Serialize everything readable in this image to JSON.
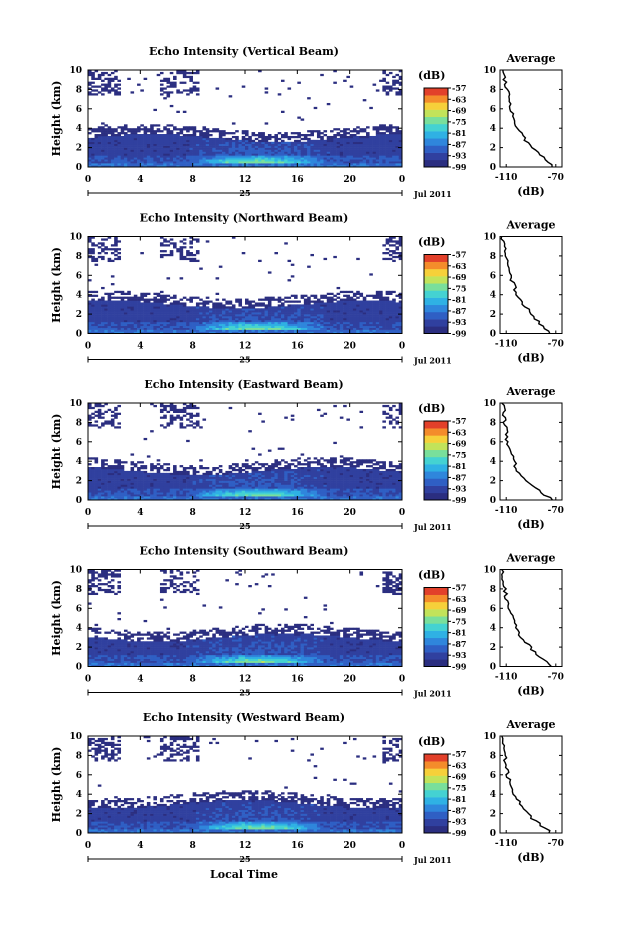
{
  "colors": {
    "scale": [
      "#2b2e80",
      "#30409f",
      "#2f5fc4",
      "#2f86dc",
      "#2fb1e4",
      "#44d2d2",
      "#79df9b",
      "#c2e35a",
      "#f6d03a",
      "#f48c2b",
      "#e2402a"
    ]
  },
  "common": {
    "local_time_label": "Local Time",
    "date_label": "Jul 2011",
    "day_label": "25",
    "unit_label": "(dB)",
    "average_title": "Average",
    "height_label": "Height (km)"
  },
  "chart_data": [
    {
      "type": "heatmap",
      "title": "Echo Intensity (Vertical Beam)",
      "xlabel": "",
      "ylabel": "Height (km)",
      "x_ticks": [
        "0",
        "4",
        "8",
        "12",
        "16",
        "20",
        "0"
      ],
      "xlim": [
        0,
        24
      ],
      "y_ticks": [
        "0",
        "2",
        "4",
        "6",
        "8",
        "10"
      ],
      "ylim": [
        0,
        10
      ],
      "colorbar": {
        "label": "(dB)",
        "ticks": [
          "-57",
          "-63",
          "-69",
          "-75",
          "-81",
          "-87",
          "-93",
          "-99"
        ],
        "range": [
          -99,
          -57
        ]
      },
      "profile": {
        "title": "Average",
        "xlabel": "(dB)",
        "x_ticks": [
          "-110",
          "-70"
        ],
        "xlim": [
          -115,
          -65
        ],
        "y_ticks": [
          "0",
          "2",
          "4",
          "6",
          "8",
          "10"
        ],
        "ylim": [
          0,
          10
        ],
        "x": [
          -112,
          -111,
          -109,
          -107,
          -106,
          -104,
          -101,
          -96,
          -91,
          -86,
          -80,
          -77,
          -73
        ],
        "y": [
          10,
          9,
          8,
          7,
          6,
          5,
          4,
          3,
          2.3,
          1.6,
          1.0,
          0.6,
          0.2
        ]
      }
    },
    {
      "type": "heatmap",
      "title": "Echo Intensity (Northward Beam)",
      "xlabel": "",
      "ylabel": "Height (km)",
      "x_ticks": [
        "0",
        "4",
        "8",
        "12",
        "16",
        "20",
        "0"
      ],
      "xlim": [
        0,
        24
      ],
      "y_ticks": [
        "0",
        "2",
        "4",
        "6",
        "8",
        "10"
      ],
      "ylim": [
        0,
        10
      ],
      "colorbar": {
        "label": "(dB)",
        "ticks": [
          "-57",
          "-63",
          "-69",
          "-75",
          "-81",
          "-87",
          "-93",
          "-99"
        ],
        "range": [
          -99,
          -57
        ]
      },
      "profile": {
        "title": "Average",
        "xlabel": "(dB)",
        "x_ticks": [
          "-110",
          "-70"
        ],
        "xlim": [
          -115,
          -65
        ],
        "y_ticks": [
          "0",
          "2",
          "4",
          "6",
          "8",
          "10"
        ],
        "ylim": [
          0,
          10
        ],
        "x": [
          -113,
          -112,
          -110,
          -109,
          -107,
          -104,
          -101,
          -96,
          -91,
          -87,
          -83,
          -80,
          -74
        ],
        "y": [
          10,
          9,
          8,
          7,
          6,
          5,
          4,
          3,
          2.3,
          1.6,
          1.0,
          0.6,
          0.2
        ]
      }
    },
    {
      "type": "heatmap",
      "title": "Echo Intensity (Eastward Beam)",
      "xlabel": "",
      "ylabel": "Height (km)",
      "x_ticks": [
        "0",
        "4",
        "8",
        "12",
        "16",
        "20",
        "0"
      ],
      "xlim": [
        0,
        24
      ],
      "y_ticks": [
        "0",
        "2",
        "4",
        "6",
        "8",
        "10"
      ],
      "ylim": [
        0,
        10
      ],
      "colorbar": {
        "label": "(dB)",
        "ticks": [
          "-57",
          "-63",
          "-69",
          "-75",
          "-81",
          "-87",
          "-93",
          "-99"
        ],
        "range": [
          -99,
          -57
        ]
      },
      "profile": {
        "title": "Average",
        "xlabel": "(dB)",
        "x_ticks": [
          "-110",
          "-70"
        ],
        "xlim": [
          -115,
          -65
        ],
        "y_ticks": [
          "0",
          "2",
          "4",
          "6",
          "8",
          "10"
        ],
        "ylim": [
          0,
          10
        ],
        "x": [
          -113,
          -112,
          -111,
          -110,
          -109,
          -106,
          -104,
          -101,
          -95,
          -90,
          -84,
          -80,
          -74
        ],
        "y": [
          10,
          9,
          8,
          7,
          6,
          5,
          4,
          3,
          2.3,
          1.6,
          1.0,
          0.6,
          0.2
        ]
      }
    },
    {
      "type": "heatmap",
      "title": "Echo Intensity (Southward Beam)",
      "xlabel": "",
      "ylabel": "Height (km)",
      "x_ticks": [
        "0",
        "4",
        "8",
        "12",
        "16",
        "20",
        "0"
      ],
      "xlim": [
        0,
        24
      ],
      "y_ticks": [
        "0",
        "2",
        "4",
        "6",
        "8",
        "10"
      ],
      "ylim": [
        0,
        10
      ],
      "colorbar": {
        "label": "(dB)",
        "ticks": [
          "-57",
          "-63",
          "-69",
          "-75",
          "-81",
          "-87",
          "-93",
          "-99"
        ],
        "range": [
          -99,
          -57
        ]
      },
      "profile": {
        "title": "Average",
        "xlabel": "(dB)",
        "x_ticks": [
          "-110",
          "-70"
        ],
        "xlim": [
          -115,
          -65
        ],
        "y_ticks": [
          "0",
          "2",
          "4",
          "6",
          "8",
          "10"
        ],
        "ylim": [
          0,
          10
        ],
        "x": [
          -113,
          -112,
          -111,
          -110,
          -108,
          -105,
          -102,
          -98,
          -93,
          -88,
          -83,
          -80,
          -74
        ],
        "y": [
          10,
          9,
          8,
          7,
          6,
          5,
          4,
          3,
          2.3,
          1.6,
          1.0,
          0.6,
          0.2
        ]
      }
    },
    {
      "type": "heatmap",
      "title": "Echo Intensity (Westward Beam)",
      "xlabel": "Local Time",
      "ylabel": "Height (km)",
      "x_ticks": [
        "0",
        "4",
        "8",
        "12",
        "16",
        "20",
        "0"
      ],
      "xlim": [
        0,
        24
      ],
      "y_ticks": [
        "0",
        "2",
        "4",
        "6",
        "8",
        "10"
      ],
      "ylim": [
        0,
        10
      ],
      "colorbar": {
        "label": "(dB)",
        "ticks": [
          "-57",
          "-63",
          "-69",
          "-75",
          "-81",
          "-87",
          "-93",
          "-99"
        ],
        "range": [
          -99,
          -57
        ]
      },
      "profile": {
        "title": "Average",
        "xlabel": "(dB)",
        "x_ticks": [
          "-110",
          "-70"
        ],
        "xlim": [
          -115,
          -65
        ],
        "y_ticks": [
          "0",
          "2",
          "4",
          "6",
          "8",
          "10"
        ],
        "ylim": [
          0,
          10
        ],
        "x": [
          -113,
          -112,
          -111,
          -110,
          -109,
          -106,
          -103,
          -99,
          -95,
          -90,
          -84,
          -81,
          -75
        ],
        "y": [
          10,
          9,
          8,
          7,
          6,
          5,
          4,
          3,
          2.3,
          1.6,
          1.0,
          0.6,
          0.2
        ]
      }
    }
  ]
}
